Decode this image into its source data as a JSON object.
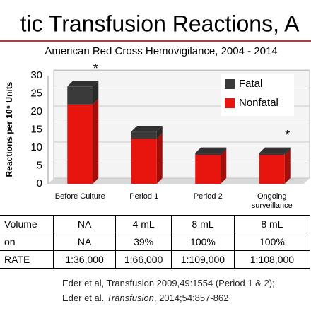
{
  "header": {
    "title": "tic Transfusion Reactions, A",
    "subtitle": "American Red Cross Hemovigilance, 2004 - 2014"
  },
  "chart_data": {
    "type": "bar",
    "stacked": true,
    "y_label": "Reactions per 10⁶ Units",
    "categories": [
      "Before Culture",
      "Period 1",
      "Period 2",
      "Ongoing surveillance"
    ],
    "series": [
      {
        "name": "Nonfatal",
        "color": "#e8150f",
        "values": [
          22,
          12.5,
          8,
          8
        ]
      },
      {
        "name": "Fatal",
        "color": "#3a3a3a",
        "values": [
          5,
          2,
          0.5,
          0.5
        ]
      }
    ],
    "ylim": [
      0,
      30
    ],
    "yticks": [
      0,
      5,
      10,
      15,
      20,
      25,
      30
    ],
    "grid": true,
    "legend": "upper right",
    "annotations": [
      "*",
      "*"
    ]
  },
  "table": {
    "rows": [
      [
        "Volume",
        "NA",
        "4 mL",
        "8 mL",
        "8 mL"
      ],
      [
        "on",
        "NA",
        "39%",
        "100%",
        "100%"
      ],
      [
        "RATE",
        "1:36,000",
        "1:66,000",
        "1:109,000",
        "1:108,000"
      ]
    ]
  },
  "citation": {
    "line1": "Eder et al, Transfusion 2009,49:1554 (Period 1 & 2);",
    "line2": [
      "Eder et al. ",
      "Transfusion",
      ", 2014;54:857-862"
    ]
  }
}
